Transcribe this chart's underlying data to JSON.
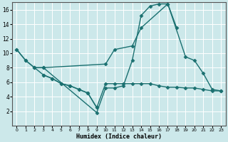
{
  "xlabel": "Humidex (Indice chaleur)",
  "bg_color": "#cce8ea",
  "grid_color": "#ffffff",
  "line_color": "#1a7070",
  "line_width": 1.0,
  "marker": "D",
  "marker_size": 2.5,
  "xlim": [
    -0.5,
    23.5
  ],
  "ylim": [
    0,
    17
  ],
  "xticks": [
    0,
    1,
    2,
    3,
    4,
    5,
    6,
    7,
    8,
    9,
    10,
    11,
    12,
    13,
    14,
    15,
    16,
    17,
    18,
    19,
    20,
    21,
    22,
    23
  ],
  "yticks": [
    2,
    4,
    6,
    8,
    10,
    12,
    14,
    16
  ],
  "lines": [
    {
      "x": [
        0,
        1,
        2,
        3,
        9,
        10,
        11,
        12,
        13,
        14,
        15,
        16,
        17,
        18
      ],
      "y": [
        10.5,
        9.0,
        8.0,
        8.0,
        1.8,
        5.2,
        5.2,
        5.5,
        9.0,
        15.2,
        16.5,
        16.8,
        16.8,
        13.5
      ]
    },
    {
      "x": [
        2,
        3,
        10,
        11,
        13,
        14,
        17,
        19,
        20,
        21,
        22,
        23
      ],
      "y": [
        8.0,
        8.0,
        8.5,
        10.5,
        11.0,
        13.5,
        16.8,
        9.5,
        9.0,
        7.2,
        5.0,
        4.8
      ]
    },
    {
      "x": [
        0,
        1,
        2,
        3,
        4,
        5,
        6,
        7,
        8,
        9,
        10,
        11,
        12,
        13,
        14,
        15,
        16,
        17,
        18,
        19,
        20,
        21,
        22,
        23
      ],
      "y": [
        10.5,
        9.0,
        8.0,
        7.0,
        6.5,
        5.8,
        5.5,
        5.0,
        4.5,
        2.5,
        5.8,
        5.8,
        5.8,
        5.8,
        5.8,
        5.8,
        5.5,
        5.3,
        5.3,
        5.2,
        5.2,
        5.0,
        4.8,
        4.8
      ]
    },
    {
      "x": [
        3,
        4,
        5,
        6,
        7,
        8,
        9
      ],
      "y": [
        7.0,
        6.5,
        5.8,
        5.5,
        5.0,
        4.5,
        2.5
      ]
    }
  ]
}
